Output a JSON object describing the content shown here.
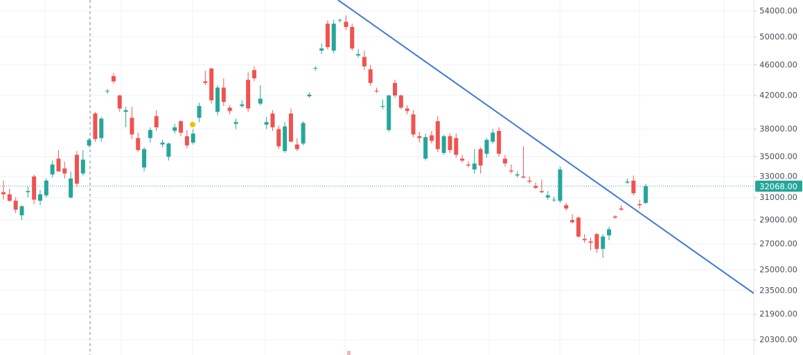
{
  "chart_data": {
    "type": "candlestick",
    "log_scale": true,
    "grid": true,
    "up_color": "#26a69a",
    "down_color": "#ef5350",
    "ylim": [
      19400,
      55800
    ],
    "yticks": [
      {
        "value": 54000,
        "label": "54000.00"
      },
      {
        "value": 50000,
        "label": "50000.00"
      },
      {
        "value": 46000,
        "label": "46000.00"
      },
      {
        "value": 42000,
        "label": "42000.00"
      },
      {
        "value": 38000,
        "label": "38000.00"
      },
      {
        "value": 35000,
        "label": "35000.00"
      },
      {
        "value": 33000,
        "label": "33000.00"
      },
      {
        "value": 31000,
        "label": "31000.00"
      },
      {
        "value": 29000,
        "label": "29000.00"
      },
      {
        "value": 27000,
        "label": "27000.00"
      },
      {
        "value": 25000,
        "label": "25000.00"
      },
      {
        "value": 23500,
        "label": "23500.00"
      },
      {
        "value": 21900,
        "label": "21900.00"
      },
      {
        "value": 20300,
        "label": "20300.00"
      }
    ],
    "last_price": {
      "value": 32068,
      "label": "32068.00",
      "color": "#26a69a"
    },
    "trendline": {
      "index": [
        54.7,
        123.2
      ],
      "price": [
        55800,
        23150
      ],
      "color": "#3b78d8"
    },
    "open": [
      31500,
      31300,
      30700,
      29400,
      31500,
      33000,
      30700,
      31200,
      33200,
      34800,
      33800,
      31000,
      35200,
      33300,
      36200,
      39800,
      37000,
      42500,
      44500,
      42000,
      40000,
      39300,
      37000,
      33900,
      37000,
      39500,
      36300,
      35000,
      37800,
      38900,
      37200,
      36500,
      39300,
      43800,
      45500,
      40000,
      43000,
      40500,
      38600,
      40700,
      44000,
      45300,
      41000,
      38500,
      39800,
      38000,
      35600,
      39800,
      36300,
      36400,
      41900,
      45500,
      48000,
      52000,
      48000,
      52500,
      52300,
      51500,
      47300,
      47100,
      45400,
      42600,
      40600,
      37900,
      43600,
      42000,
      40400,
      39700,
      37200,
      34800,
      37300,
      38900,
      35400,
      37200,
      37000,
      34800,
      34200,
      33700,
      35800,
      35300,
      36600,
      37800,
      34800,
      33600,
      33100,
      33000,
      32600,
      32100,
      31600,
      31000,
      30800,
      30700,
      30300,
      29000,
      29200,
      27400,
      27200,
      27800,
      26600,
      27700,
      29300,
      30000,
      32400,
      32600,
      30400,
      30500
    ],
    "high": [
      32600,
      31800,
      31000,
      30300,
      32000,
      33200,
      31700,
      32800,
      34600,
      35700,
      34500,
      33500,
      35600,
      35700,
      37000,
      40000,
      39400,
      42800,
      44900,
      42100,
      40600,
      40600,
      37600,
      36000,
      38200,
      40200,
      36800,
      36500,
      38600,
      39000,
      37900,
      38000,
      41100,
      45200,
      45600,
      43300,
      44200,
      40800,
      39200,
      41400,
      45000,
      45800,
      43300,
      39400,
      40200,
      38400,
      38800,
      40400,
      37000,
      38900,
      42400,
      45800,
      49000,
      52500,
      52600,
      52800,
      53300,
      52000,
      48200,
      48000,
      46000,
      43000,
      41500,
      42100,
      44000,
      42100,
      40800,
      40200,
      37700,
      37500,
      37800,
      39500,
      37400,
      37500,
      37500,
      35200,
      34500,
      35800,
      36000,
      37000,
      38000,
      38200,
      35200,
      34200,
      33500,
      36100,
      33000,
      32400,
      32700,
      31600,
      31100,
      34000,
      30500,
      29500,
      29300,
      27800,
      27500,
      27900,
      27800,
      28400,
      29400,
      30300,
      32800,
      33100,
      30800,
      32300
    ],
    "low": [
      30800,
      30600,
      29600,
      29000,
      31000,
      30400,
      30300,
      31000,
      32900,
      33700,
      32800,
      30900,
      32000,
      33100,
      36000,
      36600,
      36600,
      42200,
      43500,
      40000,
      38200,
      36900,
      35500,
      33500,
      36500,
      37800,
      36000,
      34600,
      37500,
      37200,
      35900,
      36300,
      38800,
      43300,
      41000,
      39600,
      40700,
      39700,
      38000,
      40500,
      40000,
      43800,
      40800,
      38000,
      37800,
      35800,
      35400,
      36800,
      35600,
      36200,
      41700,
      45200,
      47500,
      48200,
      47600,
      52200,
      51000,
      48000,
      47000,
      45300,
      43200,
      42300,
      40300,
      37700,
      41700,
      40300,
      39700,
      37100,
      36500,
      34600,
      36400,
      35500,
      35200,
      35400,
      34900,
      34400,
      33900,
      33300,
      33300,
      34900,
      36400,
      35000,
      34000,
      33300,
      32900,
      32800,
      32300,
      31800,
      31400,
      30800,
      30600,
      30500,
      29800,
      28700,
      27500,
      27100,
      26500,
      26300,
      25900,
      27300,
      29100,
      29800,
      32300,
      31200,
      30000,
      30400
    ],
    "close": [
      31300,
      30700,
      29900,
      30200,
      31600,
      30800,
      31300,
      32600,
      34200,
      33500,
      33300,
      32800,
      32300,
      34700,
      36800,
      36900,
      39200,
      42600,
      43800,
      40400,
      40200,
      37400,
      35700,
      35800,
      37900,
      38200,
      36500,
      36400,
      38200,
      37600,
      36200,
      37500,
      40700,
      43600,
      41400,
      43000,
      41200,
      40100,
      38800,
      40900,
      40400,
      44200,
      41600,
      38800,
      38200,
      36100,
      38300,
      36600,
      35800,
      38700,
      42100,
      45600,
      48300,
      48500,
      52000,
      52600,
      51500,
      48300,
      47500,
      45800,
      43600,
      42500,
      40700,
      42000,
      42000,
      40500,
      40100,
      37400,
      37000,
      37100,
      36700,
      35800,
      37200,
      35700,
      35200,
      34600,
      34100,
      34300,
      34100,
      36800,
      37600,
      35300,
      34300,
      33500,
      33200,
      32900,
      32500,
      31900,
      31500,
      31200,
      30800,
      33700,
      30000,
      28800,
      27600,
      27300,
      27100,
      26600,
      27600,
      28200,
      29200,
      29900,
      32500,
      31400,
      30300,
      32068
    ]
  }
}
